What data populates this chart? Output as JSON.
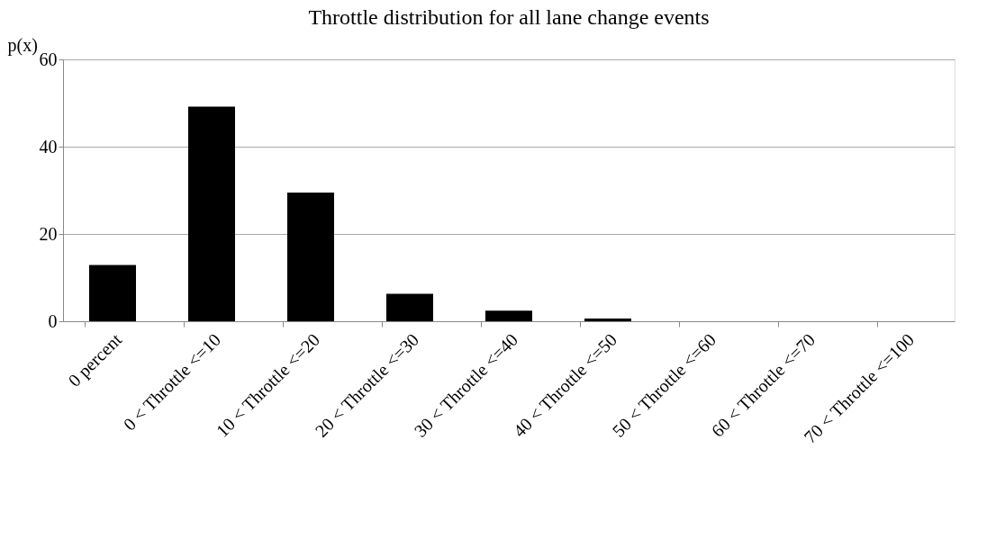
{
  "chart_data": {
    "type": "bar",
    "title": "Throttle distribution for all lane change events",
    "ylabel": "p(x)",
    "categories": [
      "0 percent",
      "0 < Throttle <=10",
      "10 < Throttle <=20",
      "20 < Throttle <=30",
      "30 < Throttle <=40",
      "40 < Throttle <=50",
      "50 < Throttle <=60",
      "60 < Throttle <=70",
      "70 < Throttle <=100"
    ],
    "values": [
      12.9,
      49.2,
      29.5,
      6.3,
      2.4,
      0.6,
      0,
      0,
      0
    ],
    "color": "#000000",
    "ylim": [
      0,
      60
    ],
    "yticks": [
      0,
      20,
      40,
      60
    ],
    "grid": "y"
  }
}
